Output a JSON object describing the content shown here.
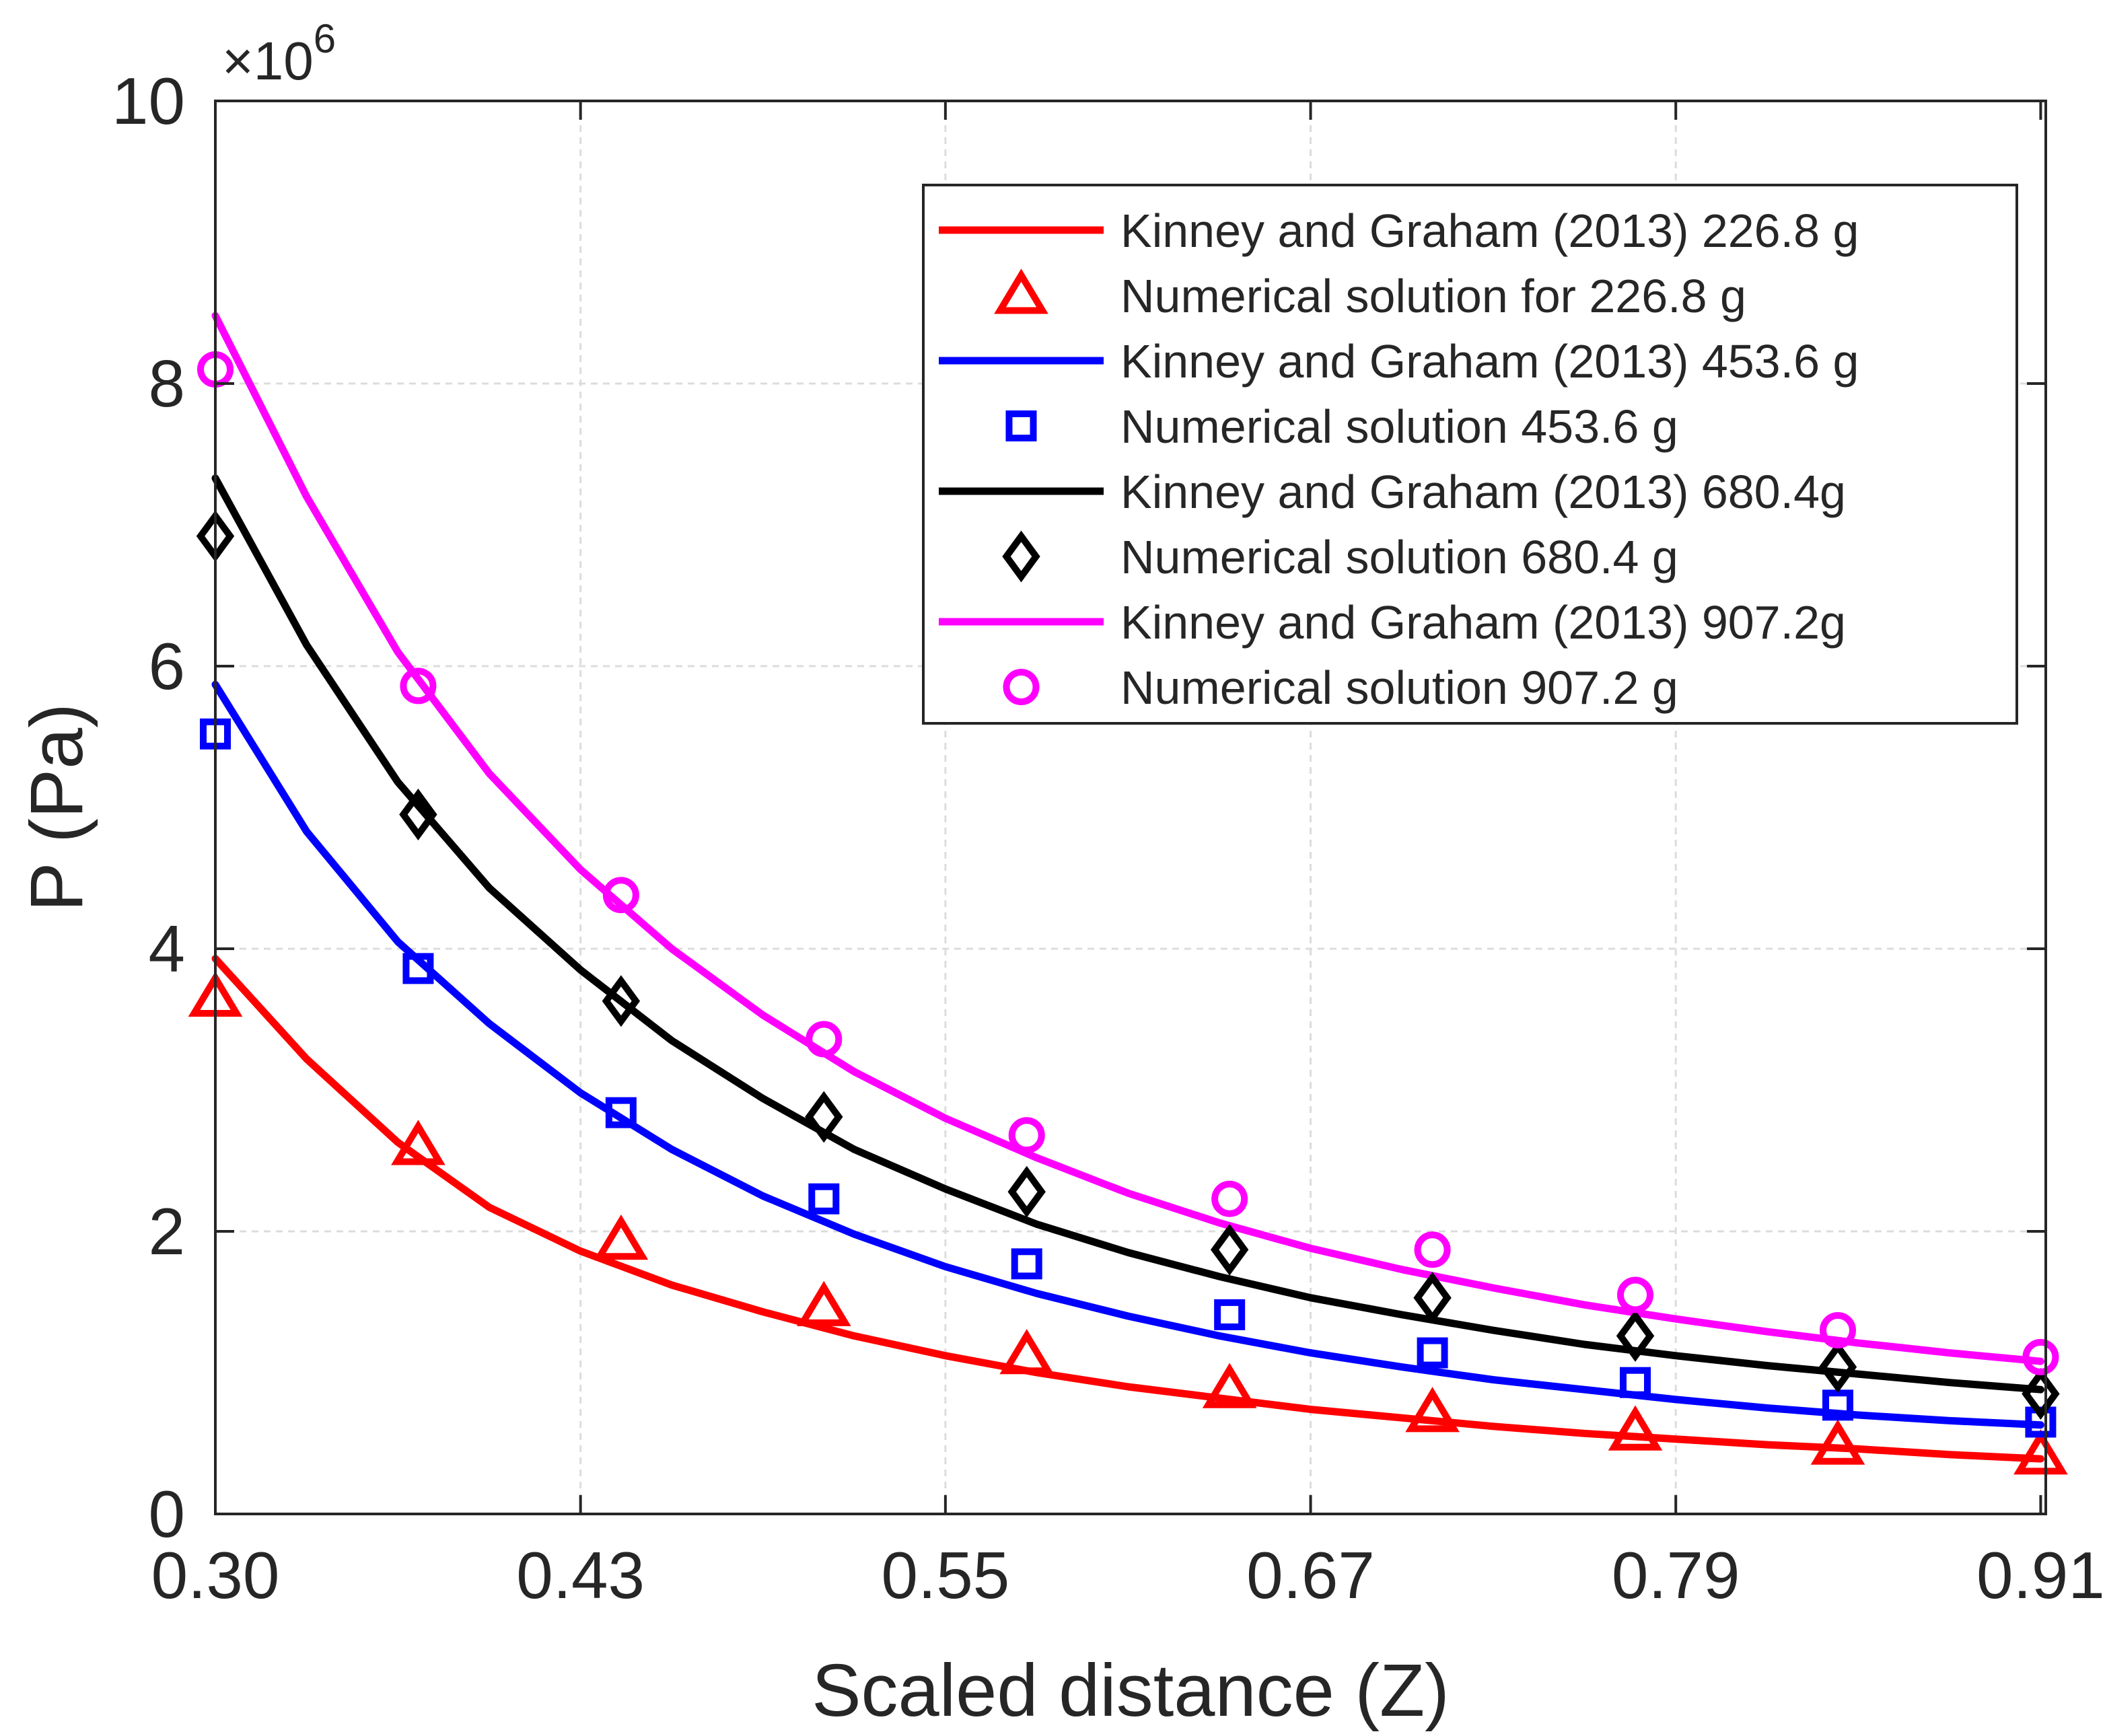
{
  "chart_data": {
    "type": "line",
    "title": "",
    "xlabel": "Scaled distance (Z)",
    "ylabel": "P (Pa)",
    "y_exponent_label": "×10",
    "y_exponent_power": "6",
    "xlim": [
      0.3,
      0.91
    ],
    "ylim": [
      0,
      10
    ],
    "y_scale": 1000000,
    "grid": true,
    "legend_position": "top-right",
    "x_tick_values": [
      0.3,
      0.4217,
      0.5433,
      0.665,
      0.7867,
      0.9083
    ],
    "x_tick_labels": [
      "0.30",
      "0.43",
      "0.55",
      "0.67",
      "0.79",
      "0.91"
    ],
    "y_tick_values": [
      0,
      2,
      4,
      6,
      8,
      10
    ],
    "y_tick_labels": [
      "0",
      "2",
      "4",
      "6",
      "8",
      "10"
    ],
    "series": [
      {
        "name": "Kinney and Graham (2013) 226.8 g",
        "kind": "line",
        "color": "#ff0000",
        "x": [
          0.3,
          0.3304,
          0.3608,
          0.3913,
          0.4217,
          0.4521,
          0.4825,
          0.5129,
          0.5433,
          0.5738,
          0.6042,
          0.6346,
          0.665,
          0.6954,
          0.7258,
          0.7562,
          0.7867,
          0.8171,
          0.8475,
          0.8779,
          0.9083
        ],
        "values": [
          3.93,
          3.22,
          2.63,
          2.17,
          1.86,
          1.62,
          1.43,
          1.26,
          1.12,
          1.0,
          0.9,
          0.82,
          0.74,
          0.68,
          0.62,
          0.57,
          0.53,
          0.49,
          0.46,
          0.42,
          0.39
        ]
      },
      {
        "name": "Numerical solution for 226.8 g",
        "kind": "scatter",
        "marker": "triangle",
        "color": "#ff0000",
        "x": [
          0.3,
          0.3676,
          0.4352,
          0.5028,
          0.5704,
          0.638,
          0.7056,
          0.7732,
          0.8407,
          0.9083
        ],
        "values": [
          3.65,
          2.6,
          1.93,
          1.46,
          1.12,
          0.88,
          0.71,
          0.58,
          0.48,
          0.41
        ]
      },
      {
        "name": "Kinney and Graham (2013) 453.6 g",
        "kind": "line",
        "color": "#0000ff",
        "x": [
          0.3,
          0.3304,
          0.3608,
          0.3913,
          0.4217,
          0.4521,
          0.4825,
          0.5129,
          0.5433,
          0.5738,
          0.6042,
          0.6346,
          0.665,
          0.6954,
          0.7258,
          0.7562,
          0.7867,
          0.8171,
          0.8475,
          0.8779,
          0.9083
        ],
        "values": [
          5.87,
          4.83,
          4.05,
          3.47,
          2.98,
          2.58,
          2.25,
          1.98,
          1.75,
          1.56,
          1.4,
          1.26,
          1.14,
          1.04,
          0.95,
          0.88,
          0.81,
          0.75,
          0.7,
          0.66,
          0.63
        ]
      },
      {
        "name": "Numerical solution 453.6 g",
        "kind": "scatter",
        "marker": "square",
        "color": "#0000ff",
        "x": [
          0.3,
          0.3676,
          0.4352,
          0.5028,
          0.5704,
          0.638,
          0.7056,
          0.7732,
          0.8407,
          0.9083
        ],
        "values": [
          5.52,
          3.86,
          2.84,
          2.23,
          1.77,
          1.41,
          1.14,
          0.93,
          0.77,
          0.65
        ]
      },
      {
        "name": "Kinney and Graham (2013) 680.4g",
        "kind": "line",
        "color": "#000000",
        "x": [
          0.3,
          0.3304,
          0.3608,
          0.3913,
          0.4217,
          0.4521,
          0.4825,
          0.5129,
          0.5433,
          0.5738,
          0.6042,
          0.6346,
          0.665,
          0.6954,
          0.7258,
          0.7562,
          0.7867,
          0.8171,
          0.8475,
          0.8779,
          0.9083
        ],
        "values": [
          7.33,
          6.15,
          5.18,
          4.43,
          3.85,
          3.35,
          2.94,
          2.58,
          2.3,
          2.05,
          1.85,
          1.68,
          1.53,
          1.41,
          1.3,
          1.2,
          1.12,
          1.05,
          0.99,
          0.93,
          0.88
        ]
      },
      {
        "name": "Numerical solution 680.4 g",
        "kind": "scatter",
        "marker": "diamond",
        "color": "#000000",
        "x": [
          0.3,
          0.3676,
          0.4352,
          0.5028,
          0.5704,
          0.638,
          0.7056,
          0.7732,
          0.8407,
          0.9083
        ],
        "values": [
          6.92,
          4.95,
          3.63,
          2.81,
          2.28,
          1.87,
          1.53,
          1.26,
          1.04,
          0.85
        ]
      },
      {
        "name": "Kinney and Graham (2013) 907.2g",
        "kind": "line",
        "color": "#ff00ff",
        "x": [
          0.3,
          0.3304,
          0.3608,
          0.3913,
          0.4217,
          0.4521,
          0.4825,
          0.5129,
          0.5433,
          0.5738,
          0.6042,
          0.6346,
          0.665,
          0.6954,
          0.7258,
          0.7562,
          0.7867,
          0.8171,
          0.8475,
          0.8779,
          0.9083
        ],
        "values": [
          8.48,
          7.2,
          6.1,
          5.24,
          4.56,
          4.0,
          3.53,
          3.13,
          2.8,
          2.52,
          2.27,
          2.06,
          1.88,
          1.73,
          1.6,
          1.48,
          1.38,
          1.29,
          1.21,
          1.14,
          1.08
        ]
      },
      {
        "name": "Numerical solution 907.2 g",
        "kind": "scatter",
        "marker": "circle",
        "color": "#ff00ff",
        "x": [
          0.3,
          0.3676,
          0.4352,
          0.5028,
          0.5704,
          0.638,
          0.7056,
          0.7732,
          0.8407,
          0.9083
        ],
        "values": [
          8.1,
          5.86,
          4.38,
          3.36,
          2.68,
          2.23,
          1.87,
          1.55,
          1.3,
          1.11
        ]
      }
    ]
  }
}
